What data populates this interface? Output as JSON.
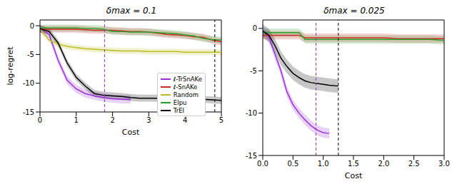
{
  "chart_data": [
    {
      "type": "line",
      "title": "δmax = 0.1",
      "x_label": "Cost",
      "y_label": "log-regret",
      "x": [
        0,
        0.25,
        0.5,
        0.75,
        1,
        1.25,
        1.5,
        1.75,
        2,
        2.25,
        2.5,
        2.75,
        3,
        3.25,
        3.5,
        3.75,
        4,
        4.25,
        4.5,
        4.75,
        5
      ],
      "xlim": [
        0,
        5
      ],
      "xticks": [
        0,
        1,
        2,
        3,
        4,
        5
      ],
      "ylim": [
        -15,
        1
      ],
      "yticks": [
        -15,
        -10,
        -5,
        0
      ],
      "legend": "right",
      "series": [
        {
          "name": "ℓ-TrSnAKe",
          "color": "#9b30d9",
          "values": [
            -0.5,
            -1.5,
            -6,
            -9.5,
            -11,
            -11.8,
            -12.2,
            -12.5,
            -12.7,
            -12.8,
            -12.8,
            null,
            null,
            null,
            null,
            null,
            null,
            null,
            null,
            null,
            null
          ],
          "lower": [
            -1.2,
            -2.2,
            -6.7,
            -10.2,
            -11.7,
            -12.5,
            -12.9,
            -13.2,
            -13.4,
            -13.5,
            -13.5,
            null,
            null,
            null,
            null,
            null,
            null,
            null,
            null,
            null,
            null
          ],
          "upper": [
            0.2,
            -0.8,
            -5.3,
            -8.8,
            -10.3,
            -11.1,
            -11.5,
            -11.8,
            -12.0,
            -12.1,
            -12.1,
            null,
            null,
            null,
            null,
            null,
            null,
            null,
            null,
            null,
            null
          ]
        },
        {
          "name": "ℓ-SnAKe",
          "color": "#d62728",
          "values": [
            -0.6,
            -0.6,
            -0.6,
            -0.6,
            -0.6,
            -0.7,
            -0.8,
            -0.8,
            -0.8,
            -0.9,
            -1.0,
            -1.0,
            -1.1,
            -1.3,
            -1.5,
            -1.6,
            -1.7,
            -1.9,
            -2.0,
            -2.5,
            -2.8
          ],
          "lower": [
            -1.2,
            -1.2,
            -1.2,
            -1.2,
            -1.2,
            -1.3,
            -1.4,
            -1.4,
            -1.4,
            -1.5,
            -1.6,
            -1.6,
            -1.7,
            -1.9,
            -2.1,
            -2.2,
            -2.3,
            -2.5,
            -2.6,
            -3.1,
            -3.4
          ],
          "upper": [
            0,
            0,
            0,
            0,
            0,
            -0.1,
            -0.2,
            -0.2,
            -0.2,
            -0.3,
            -0.4,
            -0.4,
            -0.5,
            -0.7,
            -0.9,
            -1.0,
            -1.1,
            -1.3,
            -1.4,
            -1.9,
            -2.2
          ]
        },
        {
          "name": "Random",
          "color": "#bcbd22",
          "values": [
            -0.5,
            -2.5,
            -3.2,
            -3.6,
            -3.8,
            -4.0,
            -4.1,
            -4.2,
            -4.3,
            -4.4,
            -4.4,
            -4.4,
            -4.5,
            -4.5,
            -4.5,
            -4.5,
            -4.6,
            -4.6,
            -4.6,
            -4.6,
            -4.6
          ],
          "lower": [
            -1.0,
            -3.0,
            -3.7,
            -4.1,
            -4.3,
            -4.5,
            -4.6,
            -4.7,
            -4.8,
            -4.9,
            -4.9,
            -4.9,
            -5.0,
            -5.0,
            -5.0,
            -5.0,
            -5.1,
            -5.1,
            -5.1,
            -5.1,
            -5.1
          ],
          "upper": [
            0,
            -2.0,
            -2.7,
            -3.1,
            -3.3,
            -3.5,
            -3.6,
            -3.7,
            -3.8,
            -3.9,
            -3.9,
            -3.9,
            -4.0,
            -4.0,
            -4.0,
            -4.0,
            -4.1,
            -4.1,
            -4.1,
            -4.1,
            -4.1
          ]
        },
        {
          "name": "EIpu",
          "color": "#2ca02c",
          "values": [
            -0.4,
            -0.4,
            -0.4,
            -0.4,
            -0.4,
            -0.5,
            -0.5,
            -0.6,
            -1.0,
            -1.0,
            -1.1,
            -1.1,
            -1.1,
            -1.2,
            -1.3,
            -1.4,
            -1.6,
            -1.8,
            -2.2,
            -2.4,
            -2.5
          ],
          "lower": [
            -1.0,
            -1.0,
            -1.0,
            -1.0,
            -1.0,
            -1.1,
            -1.1,
            -1.2,
            -1.6,
            -1.6,
            -1.7,
            -1.7,
            -1.7,
            -1.8,
            -1.9,
            -2.0,
            -2.2,
            -2.4,
            -2.8,
            -3.0,
            -3.1
          ],
          "upper": [
            0.2,
            0.2,
            0.2,
            0.2,
            0.2,
            0.1,
            0.1,
            0,
            -0.4,
            -0.4,
            -0.5,
            -0.5,
            -0.5,
            -0.6,
            -0.7,
            -0.8,
            -1.0,
            -1.2,
            -1.6,
            -1.8,
            -1.9
          ]
        },
        {
          "name": "TrEI",
          "color": "#000000",
          "values": [
            -0.5,
            -1,
            -3,
            -6.5,
            -9,
            -10.5,
            -11.8,
            -12.1,
            -12.2,
            -12.3,
            -12.5,
            -12.6,
            -12.6,
            -12.6,
            -12.7,
            -12.7,
            -12.8,
            -12.8,
            -12.8,
            -12.9,
            -13
          ],
          "lower": [
            -1.1,
            -1.6,
            -3.6,
            -7.1,
            -9.6,
            -11.1,
            -12.4,
            -12.7,
            -12.8,
            -12.9,
            -13.1,
            -13.2,
            -13.2,
            -13.2,
            -13.3,
            -13.3,
            -13.4,
            -13.4,
            -13.4,
            -13.5,
            -13.6
          ],
          "upper": [
            0.1,
            -0.4,
            -2.4,
            -5.9,
            -8.4,
            -9.9,
            -11.2,
            -11.5,
            -11.6,
            -11.7,
            -11.9,
            -12.0,
            -12.0,
            -12.0,
            -12.1,
            -12.1,
            -12.2,
            -12.2,
            -12.2,
            -12.3,
            -12.4
          ]
        }
      ],
      "vlines": [
        {
          "x": 1.78,
          "color": "#9b30d9",
          "line_style": "dashed"
        },
        {
          "x": 4.82,
          "color": "#000000",
          "line_style": "dashed"
        }
      ]
    },
    {
      "type": "line",
      "title": "δmax = 0.025",
      "x_label": "Cost",
      "x": [
        0,
        0.1,
        0.2,
        0.3,
        0.4,
        0.5,
        0.6,
        0.7,
        0.8,
        0.9,
        1.0,
        1.1,
        1.25,
        1.5,
        1.75,
        2,
        2.25,
        2.5,
        2.75,
        3
      ],
      "xlim": [
        0,
        3
      ],
      "xticks": [
        {
          "value": 0,
          "label": "0.0"
        },
        {
          "value": 0.5,
          "label": "0.5"
        },
        {
          "value": 1,
          "label": "1.0"
        },
        {
          "value": 1.5,
          "label": "1.5"
        },
        {
          "value": 2,
          "label": "2.0"
        },
        {
          "value": 2.5,
          "label": "2.5"
        },
        {
          "value": 3,
          "label": "3.0"
        }
      ],
      "ylim": [
        -15,
        1
      ],
      "yticks": [
        -15,
        -10,
        -5,
        0
      ],
      "series": [
        {
          "name": "ℓ-TrSnAKe",
          "color": "#9b30d9",
          "values": [
            -0.3,
            -1,
            -3,
            -5,
            -7.5,
            -9,
            -10,
            -10.8,
            -11.5,
            -12,
            -12.3,
            -12.4,
            null,
            null,
            null,
            null,
            null,
            null,
            null,
            null
          ],
          "lower": [
            -0.9,
            -1.6,
            -3.6,
            -5.6,
            -8.1,
            -9.6,
            -10.6,
            -11.4,
            -12.1,
            -12.6,
            -12.9,
            -13.0,
            null,
            null,
            null,
            null,
            null,
            null,
            null,
            null
          ],
          "upper": [
            0.3,
            -0.4,
            -2.4,
            -4.4,
            -6.9,
            -8.4,
            -9.4,
            -10.2,
            -10.9,
            -11.4,
            -11.7,
            -11.8,
            null,
            null,
            null,
            null,
            null,
            null,
            null,
            null
          ]
        },
        {
          "name": "ℓ-SnAKe",
          "color": "#d62728",
          "values": [
            -0.8,
            -0.8,
            -0.8,
            -0.8,
            -0.8,
            -0.8,
            -0.8,
            -1.1,
            -1.1,
            -1.1,
            -1.1,
            -1.1,
            -1.1,
            -1.1,
            -1.1,
            -1.1,
            -1.2,
            -1.2,
            -1.2,
            -1.2
          ],
          "lower": [
            -1.3,
            -1.3,
            -1.3,
            -1.3,
            -1.3,
            -1.3,
            -1.3,
            -1.6,
            -1.6,
            -1.6,
            -1.6,
            -1.6,
            -1.6,
            -1.6,
            -1.6,
            -1.6,
            -1.7,
            -1.7,
            -1.7,
            -1.7
          ],
          "upper": [
            -0.3,
            -0.3,
            -0.3,
            -0.3,
            -0.3,
            -0.3,
            -0.3,
            -0.6,
            -0.6,
            -0.6,
            -0.6,
            -0.6,
            -0.6,
            -0.6,
            -0.6,
            -0.6,
            -0.7,
            -0.7,
            -0.7,
            -0.7
          ]
        },
        {
          "name": "EIpu",
          "color": "#2ca02c",
          "values": [
            -0.5,
            -0.5,
            -0.5,
            -0.5,
            -0.5,
            -0.5,
            -0.5,
            -1.3,
            -1.3,
            -1.3,
            -1.3,
            -1.3,
            -1.3,
            -1.3,
            -1.3,
            -1.3,
            -1.3,
            -1.3,
            -1.3,
            -1.4
          ],
          "lower": [
            -1.0,
            -1.0,
            -1.0,
            -1.0,
            -1.0,
            -1.0,
            -1.0,
            -1.8,
            -1.8,
            -1.8,
            -1.8,
            -1.8,
            -1.8,
            -1.8,
            -1.8,
            -1.8,
            -1.8,
            -1.8,
            -1.8,
            -1.9
          ],
          "upper": [
            0,
            0,
            0,
            0,
            0,
            0,
            0,
            -0.8,
            -0.8,
            -0.8,
            -0.8,
            -0.8,
            -0.8,
            -0.8,
            -0.8,
            -0.8,
            -0.8,
            -0.8,
            -0.8,
            -0.9
          ]
        },
        {
          "name": "TrEI",
          "color": "#000000",
          "values": [
            -0.3,
            -0.8,
            -2,
            -3.5,
            -4.5,
            -5.3,
            -5.8,
            -6.2,
            -6.4,
            -6.5,
            -6.6,
            -6.7,
            -6.8,
            null,
            null,
            null,
            null,
            null,
            null,
            null
          ],
          "lower": [
            -1.1,
            -1.6,
            -2.8,
            -4.3,
            -5.3,
            -6.1,
            -6.6,
            -7.0,
            -7.2,
            -7.3,
            -7.4,
            -7.5,
            -7.6,
            null,
            null,
            null,
            null,
            null,
            null,
            null
          ],
          "upper": [
            0.5,
            0,
            -1.2,
            -2.7,
            -3.7,
            -4.5,
            -5.0,
            -5.4,
            -5.6,
            -5.7,
            -5.8,
            -5.9,
            -6.0,
            null,
            null,
            null,
            null,
            null,
            null,
            null
          ]
        }
      ],
      "vlines": [
        {
          "x": 0.88,
          "color": "#9b30d9",
          "line_style": "dashed"
        },
        {
          "x": 1.25,
          "color": "#000000",
          "line_style": "dashed"
        }
      ]
    }
  ]
}
